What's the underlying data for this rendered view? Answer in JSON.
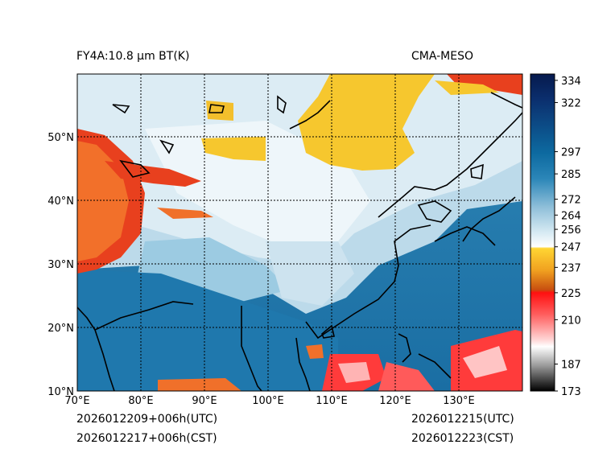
{
  "title_left": "FY4A:10.8 µm BT(K)",
  "title_right": "CMA-MESO",
  "time": {
    "init_utc": "2026012209+006h(UTC)",
    "init_cst": "2026012217+006h(CST)",
    "valid_utc": "2026012215(UTC)",
    "valid_cst": "2026012223(CST)"
  },
  "map": {
    "lon_labels": [
      "70°E",
      "80°E",
      "90°E",
      "100°E",
      "110°E",
      "120°E",
      "130°E"
    ],
    "lat_labels": [
      "10°N",
      "20°N",
      "30°N",
      "40°N",
      "50°N"
    ],
    "lon_range": [
      70,
      140
    ],
    "lat_range": [
      10,
      60
    ]
  },
  "colorbar": {
    "ticks": [
      "334",
      "322",
      "297",
      "285",
      "272",
      "264",
      "256",
      "247",
      "237",
      "225",
      "210",
      "187",
      "173"
    ],
    "tick_values": [
      334,
      322,
      297,
      285,
      272,
      264,
      256,
      247,
      237,
      225,
      210,
      187,
      173
    ]
  }
}
